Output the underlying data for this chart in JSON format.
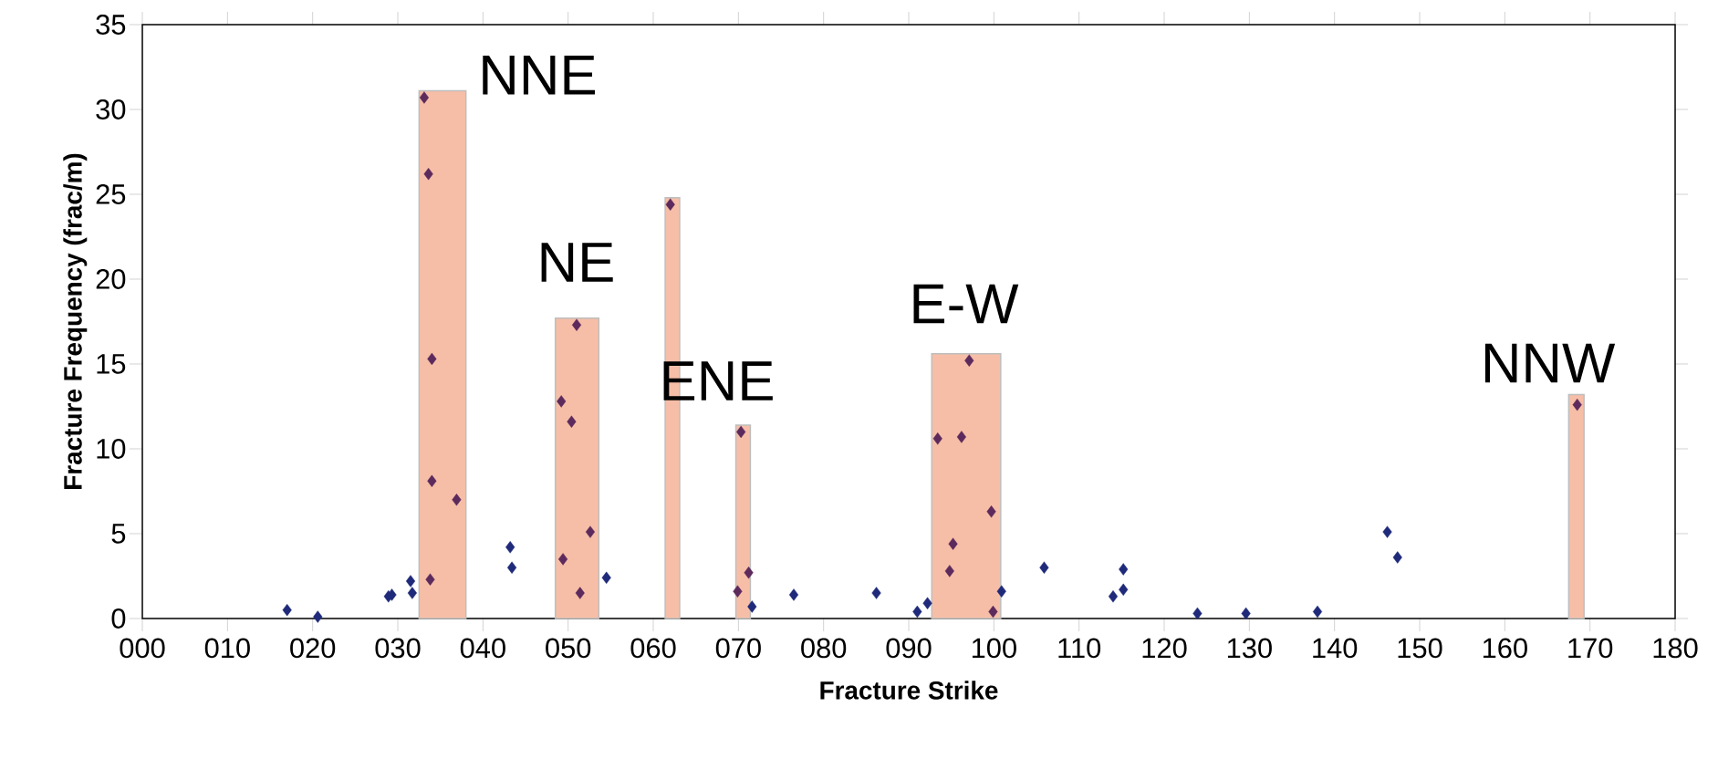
{
  "chart_data": {
    "type": "scatter",
    "xlabel": "Fracture Strike",
    "ylabel": "Fracture Frequency (frac/m)",
    "xlim": [
      0,
      180
    ],
    "ylim": [
      0,
      35
    ],
    "xticks": [
      {
        "value": 0,
        "label": "000"
      },
      {
        "value": 10,
        "label": "010"
      },
      {
        "value": 20,
        "label": "020"
      },
      {
        "value": 30,
        "label": "030"
      },
      {
        "value": 40,
        "label": "040"
      },
      {
        "value": 50,
        "label": "050"
      },
      {
        "value": 60,
        "label": "060"
      },
      {
        "value": 70,
        "label": "070"
      },
      {
        "value": 80,
        "label": "080"
      },
      {
        "value": 90,
        "label": "090"
      },
      {
        "value": 100,
        "label": "100"
      },
      {
        "value": 110,
        "label": "110"
      },
      {
        "value": 120,
        "label": "120"
      },
      {
        "value": 130,
        "label": "130"
      },
      {
        "value": 140,
        "label": "140"
      },
      {
        "value": 150,
        "label": "150"
      },
      {
        "value": 160,
        "label": "160"
      },
      {
        "value": 170,
        "label": "170"
      },
      {
        "value": 180,
        "label": "180"
      }
    ],
    "yticks": [
      0,
      5,
      10,
      15,
      20,
      25,
      30,
      35
    ],
    "marker": "diamond",
    "series": [
      {
        "type": "histogram",
        "color": "#f7bea7",
        "bins": [
          32.5,
          38.0,
          48.5,
          53.6,
          61.4,
          63.1,
          69.7,
          71.4,
          92.7,
          100.8,
          167.5,
          169.3
        ],
        "values": [
          31.1,
          0,
          17.7,
          0,
          24.8,
          0,
          11.4,
          0,
          15.6,
          0,
          13.2
        ]
      },
      {
        "x": [
          17.0,
          20.6,
          28.9,
          29.3,
          31.5,
          31.7,
          33.1,
          33.6,
          34.0,
          34.0,
          33.8,
          36.9,
          43.2,
          43.4,
          49.2,
          50.4,
          51.0,
          49.4,
          51.4,
          52.6,
          54.5,
          62.0,
          70.3,
          71.2,
          69.9,
          71.6,
          76.5,
          86.2,
          91.0,
          92.2,
          93.4,
          96.2,
          97.1,
          99.7,
          95.2,
          94.8,
          99.9,
          100.9,
          105.9,
          114.0,
          115.2,
          115.2,
          123.9,
          129.6,
          138.0,
          146.2,
          147.4,
          168.5
        ],
        "values": [
          0.5,
          0.1,
          1.3,
          1.4,
          2.2,
          1.5,
          30.7,
          26.2,
          15.3,
          8.1,
          2.3,
          7.0,
          4.2,
          3.0,
          12.8,
          11.6,
          17.3,
          3.5,
          1.5,
          5.1,
          2.4,
          24.4,
          11.0,
          2.7,
          1.6,
          0.7,
          1.4,
          1.5,
          0.4,
          0.9,
          10.6,
          10.7,
          15.2,
          6.3,
          4.4,
          2.8,
          0.4,
          1.6,
          3.0,
          1.3,
          1.7,
          2.9,
          0.3,
          0.3,
          0.4,
          5.1,
          3.6,
          12.6
        ],
        "colors": [
          "#1f2a7a",
          "#1f2a7a",
          "#1f2a7a",
          "#1f2a7a",
          "#1f2a7a",
          "#1f2a7a",
          "#5c2a5c",
          "#5c2a5c",
          "#5c2a5c",
          "#5c2a5c",
          "#5c2a5c",
          "#5c2a5c",
          "#1f2a7a",
          "#1f2a7a",
          "#5c2a5c",
          "#5c2a5c",
          "#5c2a5c",
          "#5c2a5c",
          "#5c2a5c",
          "#5c2a5c",
          "#1f2a7a",
          "#5c2a5c",
          "#5c2a5c",
          "#5c2a5c",
          "#5c2a5c",
          "#1f2a7a",
          "#1f2a7a",
          "#1f2a7a",
          "#1f2a7a",
          "#1f2a7a",
          "#5c2a5c",
          "#5c2a5c",
          "#5c2a5c",
          "#5c2a5c",
          "#5c2a5c",
          "#5c2a5c",
          "#5c2a5c",
          "#1f2a7a",
          "#1f2a7a",
          "#1f2a7a",
          "#1f2a7a",
          "#1f2a7a",
          "#1f2a7a",
          "#1f2a7a",
          "#1f2a7a",
          "#1f2a7a",
          "#1f2a7a",
          "#5c2a5c"
        ]
      }
    ],
    "annotations": [
      "NNE",
      "NE",
      "ENE",
      "E-W",
      "NNW"
    ]
  }
}
